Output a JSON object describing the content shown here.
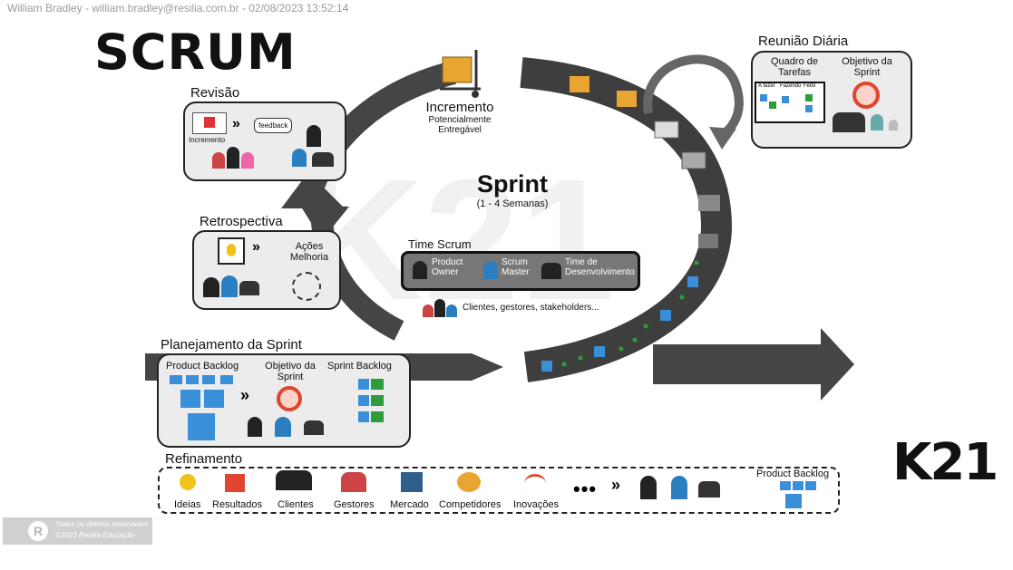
{
  "header": {
    "user_stamp": "William Bradley - william.bradley@resilia.com.br - 02/08/2023 13:52:14"
  },
  "title": "SCRUM",
  "logo_text": "K21",
  "sprint": {
    "title": "Sprint",
    "duration": "(1 - 4 Semanas)"
  },
  "increment": {
    "title": "Incremento",
    "line1": "Potencialmente",
    "line2": "Entregável"
  },
  "daily": {
    "title": "Reunião Diária",
    "board_label_1": "Quadro de",
    "board_label_2": "Tarefas",
    "goal_label_1": "Objetivo da",
    "goal_label_2": "Sprint",
    "col_todo": "A fazer",
    "col_doing": "Fazendo",
    "col_done": "Feito"
  },
  "review": {
    "title": "Revisão",
    "increment_label": "Incremento",
    "feedback_label": "feedback"
  },
  "retro": {
    "title": "Retrospectiva",
    "actions_1": "Ações",
    "actions_2": "Melhoria"
  },
  "team": {
    "title": "Time Scrum",
    "po_1": "Product",
    "po_2": "Owner",
    "sm_1": "Scrum",
    "sm_2": "Master",
    "dev_1": "Time de",
    "dev_2": "Desenvolvimento",
    "stakeholders": "Clientes, gestores, stakeholders..."
  },
  "planning": {
    "title": "Planejamento da Sprint",
    "product_backlog": "Product Backlog",
    "goal_1": "Objetivo da",
    "goal_2": "Sprint",
    "sprint_backlog": "Sprint Backlog"
  },
  "refinement": {
    "title": "Refinamento",
    "items": [
      "Ideias",
      "Resultados",
      "Clientes",
      "Gestores",
      "Mercado",
      "Competidores",
      "Inovações"
    ],
    "product_backlog": "Product Backlog"
  },
  "footer": {
    "rights": "Todos os direitos reservados",
    "copyright": "©2023 Resilia Educação",
    "badge": "R"
  },
  "colors": {
    "arrow": "#454545",
    "box_bg": "#ececec",
    "sticky": "#3a8fd9",
    "green": "#2e9c3a",
    "team_bar": "#777777"
  }
}
